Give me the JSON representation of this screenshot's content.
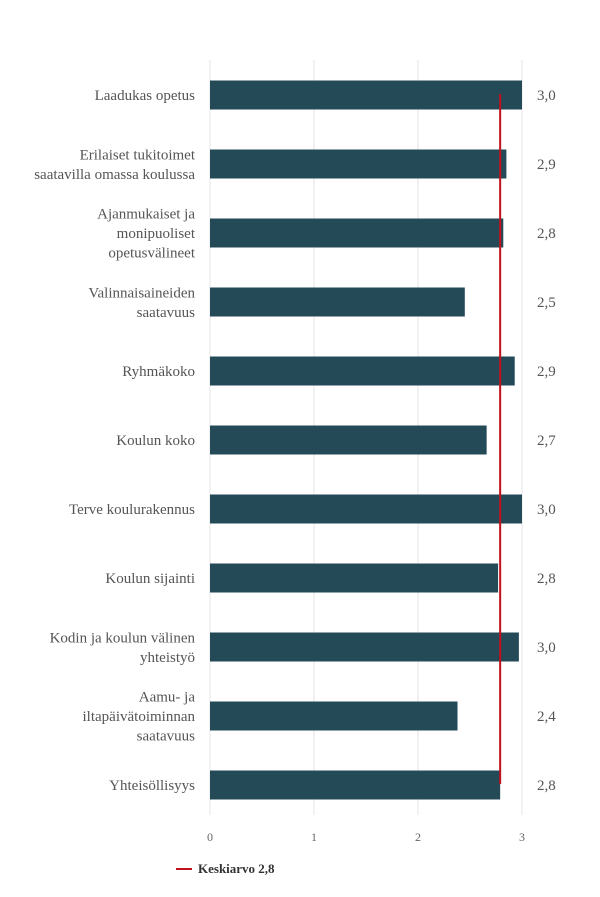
{
  "chart_data": {
    "type": "bar",
    "orientation": "horizontal",
    "categories": [
      "Laadukas opetus",
      "Erilaiset tukitoimet saatavilla omassa koulussa",
      "Ajanmukaiset ja monipuoliset opetusvälineet",
      "Valinnaisaineiden saatavuus",
      "Ryhmäkoko",
      "Koulun koko",
      "Terve koulurakennus",
      "Koulun sijainti",
      "Kodin ja koulun välinen yhteistyö",
      "Aamu- ja iltapäivätoiminnan saatavuus",
      "Yhteisöllisyys"
    ],
    "category_lines": [
      [
        "Laadukas opetus"
      ],
      [
        "Erilaiset tukitoimet",
        "saatavilla omassa koulussa"
      ],
      [
        "Ajanmukaiset ja",
        "monipuoliset",
        "opetusvälineet"
      ],
      [
        "Valinnaisaineiden",
        "saatavuus"
      ],
      [
        "Ryhmäkoko"
      ],
      [
        "Koulun koko"
      ],
      [
        "Terve koulurakennus"
      ],
      [
        "Koulun sijainti"
      ],
      [
        "Kodin ja koulun välinen",
        "yhteistyö"
      ],
      [
        "Aamu- ja",
        "iltapäivätoiminnan",
        "saatavuus"
      ],
      [
        "Yhteisöllisyys"
      ]
    ],
    "values": [
      3.0,
      2.85,
      2.82,
      2.45,
      2.93,
      2.66,
      3.0,
      2.77,
      2.97,
      2.38,
      2.79
    ],
    "value_labels": [
      "3,0",
      "2,9",
      "2,8",
      "2,5",
      "2,9",
      "2,7",
      "3,0",
      "2,8",
      "3,0",
      "2,4",
      "2,8"
    ],
    "xlim": [
      0,
      3
    ],
    "x_ticks": [
      "0",
      "1",
      "2",
      "3"
    ],
    "reference_line": {
      "value": 2.79,
      "label": "Keskiarvo 2,8",
      "color": "#c0111c"
    },
    "bar_color": "#244a58",
    "grid": true,
    "legend_position": "bottom-left"
  }
}
